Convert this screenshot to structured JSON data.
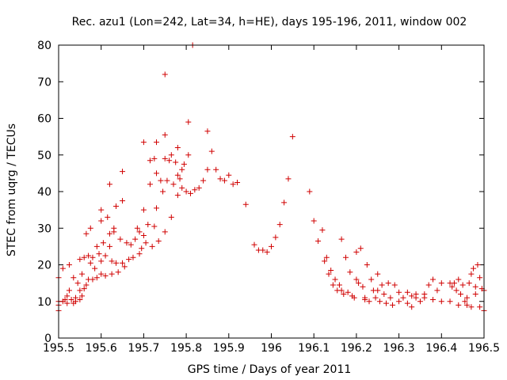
{
  "chart_data": {
    "type": "scatter",
    "title": "Rec. azu1 (Lon=242, Lat=34, h=HE), days 195-196, 2011, window 002",
    "xlabel": "GPS time / Days of year 2011",
    "ylabel": "STEC from uqrg / TECUs",
    "xlim": [
      195.5,
      196.5
    ],
    "ylim": [
      0,
      80
    ],
    "xticks": [
      195.5,
      195.6,
      195.7,
      195.8,
      195.9,
      196,
      196.1,
      196.2,
      196.3,
      196.4,
      196.5
    ],
    "xtick_labels": [
      "195.5",
      "195.6",
      "195.7",
      "195.8",
      "195.9",
      "196",
      "196.1",
      "196.2",
      "196.3",
      "196.4",
      "196.5"
    ],
    "yticks": [
      0,
      10,
      20,
      30,
      40,
      50,
      60,
      70,
      80
    ],
    "ytick_labels": [
      "0",
      "10",
      "20",
      "30",
      "40",
      "50",
      "60",
      "70",
      "80"
    ],
    "grid": false,
    "marker": "+",
    "color": "#d00000",
    "points": [
      [
        195.5,
        16.5
      ],
      [
        195.5,
        10
      ],
      [
        195.5,
        9
      ],
      [
        195.5,
        7.5
      ],
      [
        195.51,
        19
      ],
      [
        195.51,
        10
      ],
      [
        195.515,
        10.5
      ],
      [
        195.52,
        11.5
      ],
      [
        195.52,
        9.5
      ],
      [
        195.525,
        20
      ],
      [
        195.525,
        13
      ],
      [
        195.53,
        10.5
      ],
      [
        195.535,
        16.5
      ],
      [
        195.535,
        9.5
      ],
      [
        195.54,
        11
      ],
      [
        195.54,
        10
      ],
      [
        195.545,
        15
      ],
      [
        195.55,
        21.5
      ],
      [
        195.55,
        13
      ],
      [
        195.55,
        10.5
      ],
      [
        195.555,
        17.5
      ],
      [
        195.555,
        11.5
      ],
      [
        195.56,
        22
      ],
      [
        195.56,
        13.5
      ],
      [
        195.565,
        28.5
      ],
      [
        195.565,
        14.5
      ],
      [
        195.57,
        22.5
      ],
      [
        195.57,
        16
      ],
      [
        195.575,
        30
      ],
      [
        195.575,
        20.5
      ],
      [
        195.58,
        22
      ],
      [
        195.58,
        16
      ],
      [
        195.585,
        19
      ],
      [
        195.59,
        25
      ],
      [
        195.59,
        16.5
      ],
      [
        195.595,
        23
      ],
      [
        195.6,
        35
      ],
      [
        195.6,
        32
      ],
      [
        195.6,
        21
      ],
      [
        195.6,
        17.5
      ],
      [
        195.605,
        26
      ],
      [
        195.61,
        22.5
      ],
      [
        195.61,
        17
      ],
      [
        195.615,
        33
      ],
      [
        195.62,
        42
      ],
      [
        195.62,
        28.5
      ],
      [
        195.62,
        25
      ],
      [
        195.625,
        21
      ],
      [
        195.625,
        17.5
      ],
      [
        195.63,
        30
      ],
      [
        195.63,
        29
      ],
      [
        195.635,
        36
      ],
      [
        195.635,
        20.5
      ],
      [
        195.64,
        18
      ],
      [
        195.645,
        27
      ],
      [
        195.65,
        45.5
      ],
      [
        195.65,
        37.5
      ],
      [
        195.65,
        20.5
      ],
      [
        195.655,
        19.5
      ],
      [
        195.66,
        26
      ],
      [
        195.665,
        21.5
      ],
      [
        195.67,
        25.5
      ],
      [
        195.675,
        22
      ],
      [
        195.68,
        27
      ],
      [
        195.685,
        30
      ],
      [
        195.69,
        29
      ],
      [
        195.69,
        23
      ],
      [
        195.695,
        24.5
      ],
      [
        195.7,
        53.5
      ],
      [
        195.7,
        35
      ],
      [
        195.7,
        28
      ],
      [
        195.705,
        26
      ],
      [
        195.71,
        31
      ],
      [
        195.715,
        48.5
      ],
      [
        195.715,
        42
      ],
      [
        195.72,
        25
      ],
      [
        195.725,
        49
      ],
      [
        195.725,
        30.5
      ],
      [
        195.73,
        53.5
      ],
      [
        195.73,
        45
      ],
      [
        195.73,
        35.5
      ],
      [
        195.735,
        26.5
      ],
      [
        195.74,
        43
      ],
      [
        195.745,
        40
      ],
      [
        195.75,
        72
      ],
      [
        195.75,
        55.5
      ],
      [
        195.75,
        49
      ],
      [
        195.75,
        29
      ],
      [
        195.755,
        43
      ],
      [
        195.76,
        48.5
      ],
      [
        195.765,
        50
      ],
      [
        195.765,
        33
      ],
      [
        195.77,
        42
      ],
      [
        195.775,
        48
      ],
      [
        195.78,
        52
      ],
      [
        195.78,
        44.5
      ],
      [
        195.78,
        39
      ],
      [
        195.785,
        43.5
      ],
      [
        195.79,
        46
      ],
      [
        195.79,
        41
      ],
      [
        195.795,
        47.5
      ],
      [
        195.8,
        40
      ],
      [
        195.805,
        59
      ],
      [
        195.805,
        50
      ],
      [
        195.81,
        39.5
      ],
      [
        195.815,
        80
      ],
      [
        195.82,
        40.5
      ],
      [
        195.83,
        41
      ],
      [
        195.84,
        43
      ],
      [
        195.85,
        56.5
      ],
      [
        195.85,
        46
      ],
      [
        195.86,
        51
      ],
      [
        195.87,
        46
      ],
      [
        195.88,
        43.5
      ],
      [
        195.89,
        43
      ],
      [
        195.9,
        44.5
      ],
      [
        195.91,
        42
      ],
      [
        195.92,
        42.5
      ],
      [
        195.94,
        36.5
      ],
      [
        195.96,
        25.5
      ],
      [
        195.97,
        24
      ],
      [
        195.98,
        24
      ],
      [
        195.99,
        23.5
      ],
      [
        196,
        25
      ],
      [
        196.01,
        27.5
      ],
      [
        196.02,
        31
      ],
      [
        196.03,
        37
      ],
      [
        196.04,
        43.5
      ],
      [
        196.05,
        55
      ],
      [
        196.09,
        40
      ],
      [
        196.1,
        32
      ],
      [
        196.11,
        26.5
      ],
      [
        196.12,
        29.5
      ],
      [
        196.125,
        21
      ],
      [
        196.13,
        22
      ],
      [
        196.135,
        17.5
      ],
      [
        196.14,
        18.5
      ],
      [
        196.145,
        14.5
      ],
      [
        196.15,
        16
      ],
      [
        196.155,
        13
      ],
      [
        196.16,
        14.5
      ],
      [
        196.165,
        27
      ],
      [
        196.165,
        13
      ],
      [
        196.17,
        12
      ],
      [
        196.175,
        22
      ],
      [
        196.18,
        12.5
      ],
      [
        196.185,
        18
      ],
      [
        196.19,
        11.5
      ],
      [
        196.195,
        11
      ],
      [
        196.2,
        23.5
      ],
      [
        196.2,
        16
      ],
      [
        196.205,
        15
      ],
      [
        196.21,
        24.5
      ],
      [
        196.215,
        14
      ],
      [
        196.22,
        11
      ],
      [
        196.22,
        10.5
      ],
      [
        196.225,
        20
      ],
      [
        196.23,
        10
      ],
      [
        196.235,
        16
      ],
      [
        196.24,
        13
      ],
      [
        196.245,
        11
      ],
      [
        196.25,
        17.5
      ],
      [
        196.25,
        13
      ],
      [
        196.255,
        10
      ],
      [
        196.26,
        14.5
      ],
      [
        196.265,
        12
      ],
      [
        196.27,
        9.5
      ],
      [
        196.275,
        15
      ],
      [
        196.28,
        11
      ],
      [
        196.285,
        9
      ],
      [
        196.29,
        14.5
      ],
      [
        196.3,
        12.5
      ],
      [
        196.3,
        10
      ],
      [
        196.31,
        11
      ],
      [
        196.32,
        9.5
      ],
      [
        196.33,
        11.5
      ],
      [
        196.33,
        8.5
      ],
      [
        196.34,
        11
      ],
      [
        196.35,
        10
      ],
      [
        196.36,
        12
      ],
      [
        196.37,
        14.5
      ],
      [
        196.38,
        16
      ],
      [
        196.39,
        13
      ],
      [
        196.4,
        15
      ],
      [
        196.42,
        15
      ],
      [
        196.425,
        14
      ],
      [
        196.43,
        15
      ],
      [
        196.435,
        13
      ],
      [
        196.44,
        16
      ],
      [
        196.445,
        12
      ],
      [
        196.45,
        14.5
      ],
      [
        196.455,
        10
      ],
      [
        196.46,
        11
      ],
      [
        196.465,
        15
      ],
      [
        196.47,
        17.5
      ],
      [
        196.475,
        19
      ],
      [
        196.48,
        14
      ],
      [
        196.48,
        12
      ],
      [
        196.485,
        20
      ],
      [
        196.49,
        16.5
      ],
      [
        196.495,
        13.5
      ],
      [
        196.5,
        13
      ],
      [
        196.5,
        7.5
      ],
      [
        196.49,
        8.5
      ],
      [
        196.47,
        8.5
      ],
      [
        196.46,
        9
      ],
      [
        196.44,
        9
      ],
      [
        196.42,
        10
      ],
      [
        196.4,
        10
      ],
      [
        196.38,
        10.5
      ],
      [
        196.36,
        11
      ],
      [
        196.34,
        12
      ],
      [
        196.32,
        12.5
      ]
    ]
  }
}
